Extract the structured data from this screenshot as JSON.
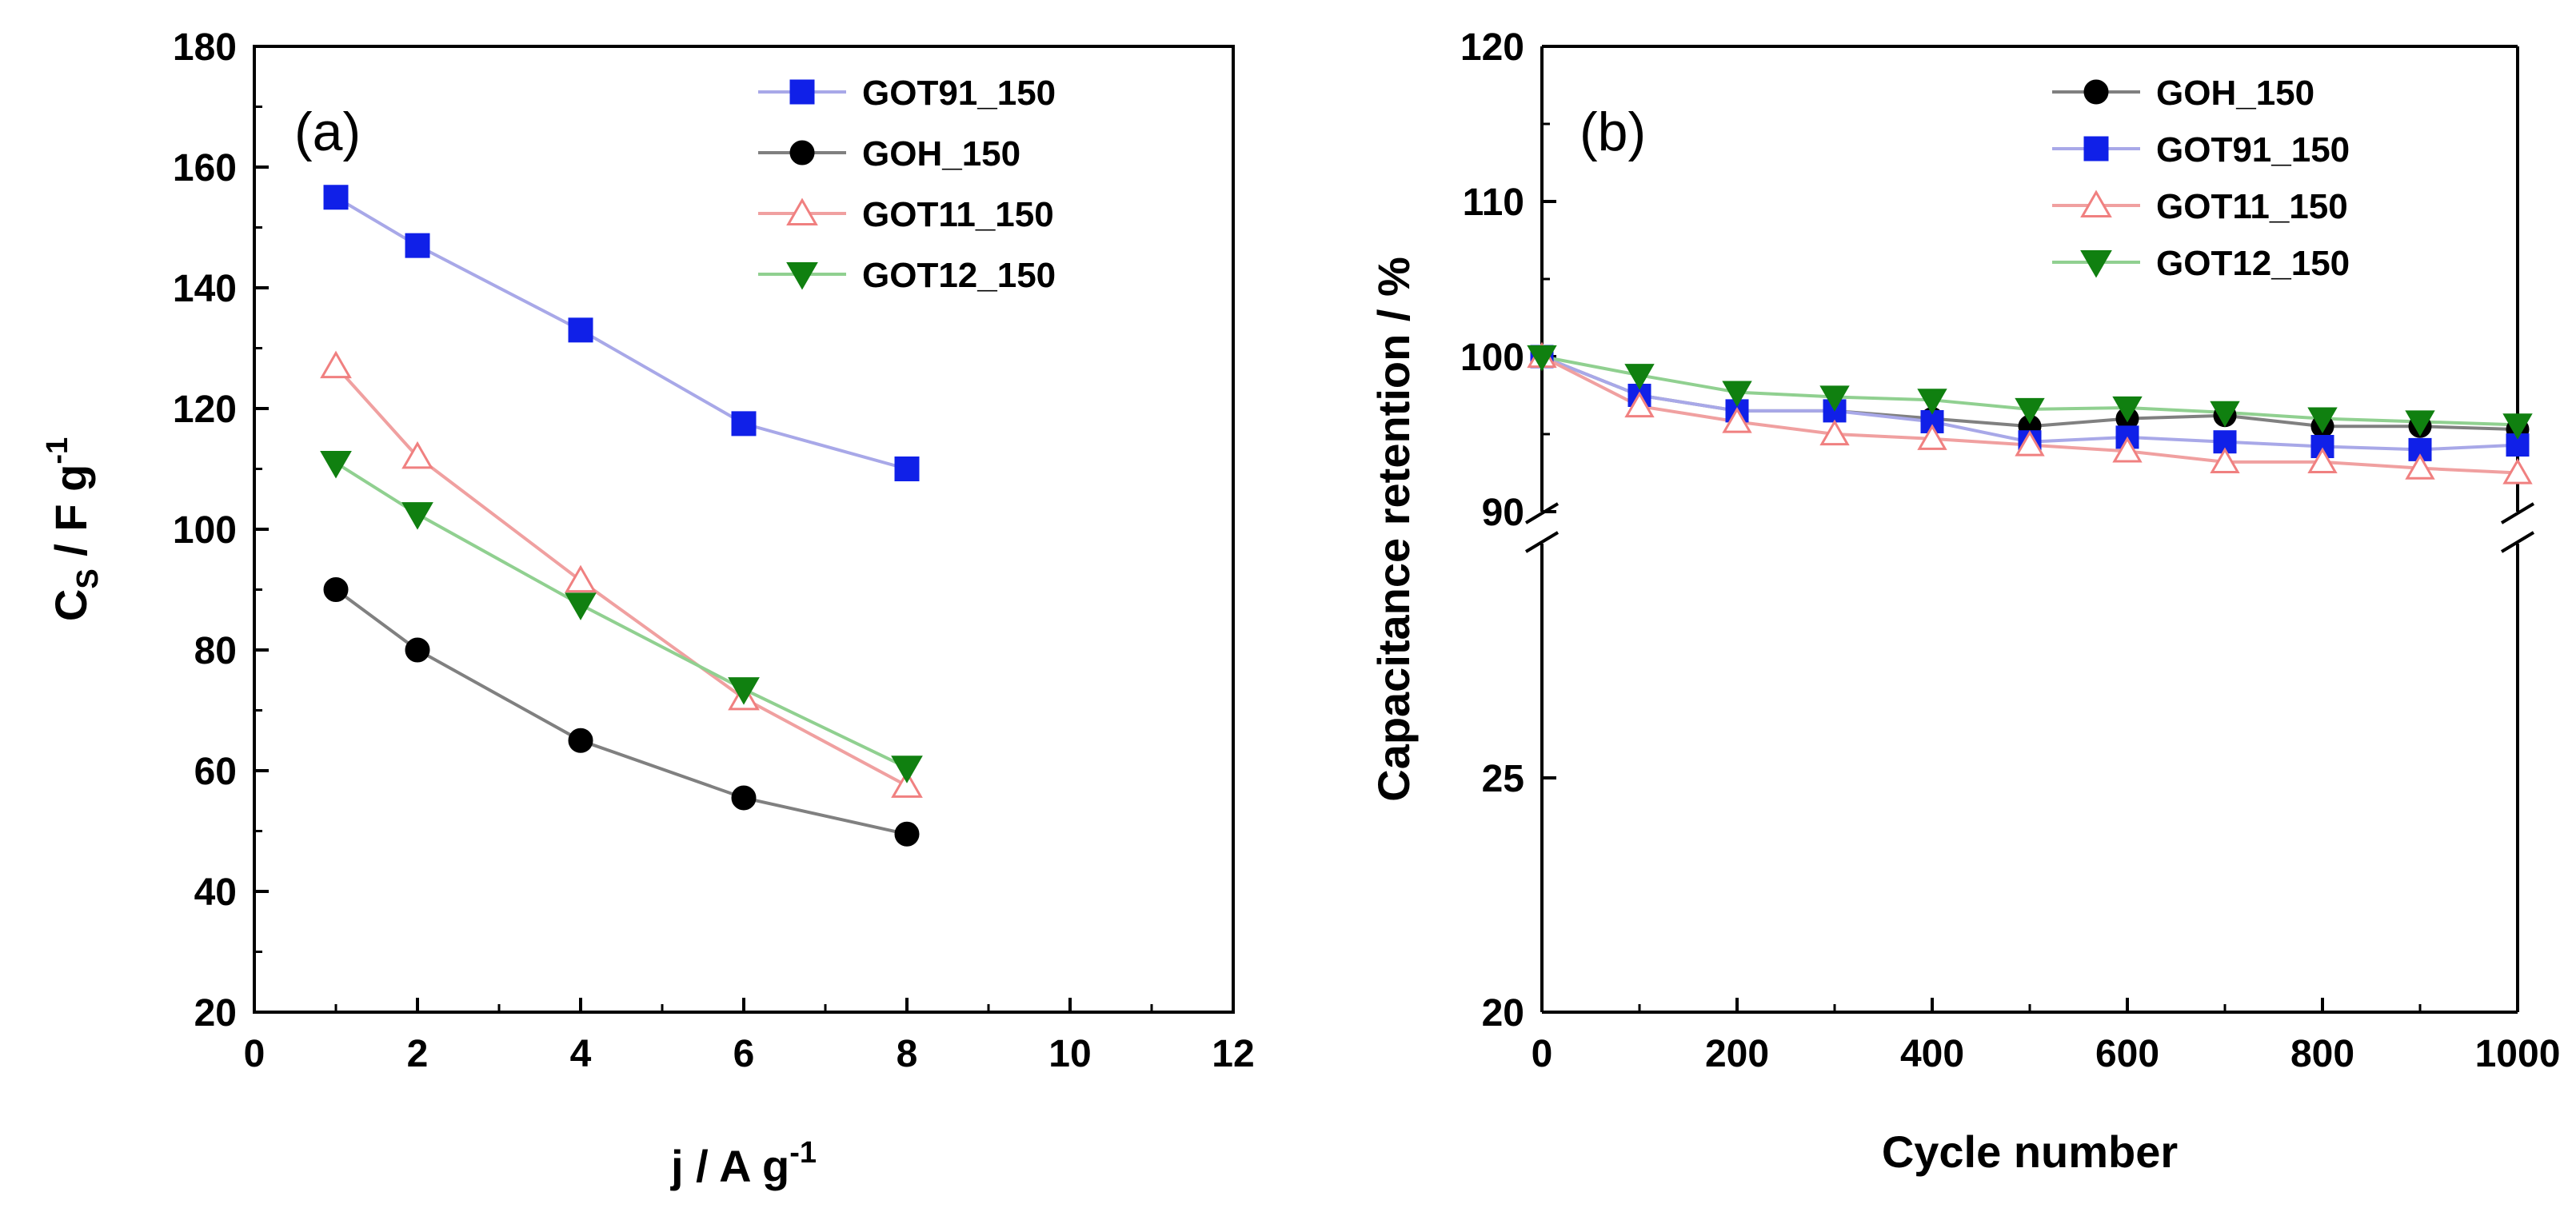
{
  "chart_data": [
    {
      "type": "line",
      "panel_label": "(a)",
      "xlabel": "j / A g",
      "xlabel_sup": "-1",
      "ylabel_main": "C",
      "ylabel_sub": "S",
      "ylabel_rest": " / F g",
      "ylabel_sup": "-1",
      "xlim": [
        0,
        12
      ],
      "ylim": [
        20,
        180
      ],
      "xticks": [
        0,
        2,
        4,
        6,
        8,
        10,
        12
      ],
      "yticks": [
        20,
        40,
        60,
        80,
        100,
        120,
        140,
        160,
        180
      ],
      "grid": false,
      "legend_position": "top-right",
      "x": [
        1,
        2,
        4,
        6,
        8
      ],
      "series": [
        {
          "name": "GOT91_150",
          "values": [
            155,
            147,
            133,
            117.5,
            110
          ],
          "marker": "square",
          "color": "#1020e8",
          "line_color": "#a8a8e8",
          "filled": true
        },
        {
          "name": "GOH_150",
          "values": [
            90,
            80,
            65,
            55.5,
            49.5
          ],
          "marker": "circle",
          "color": "#000000",
          "line_color": "#808080",
          "filled": true
        },
        {
          "name": "GOT11_150",
          "values": [
            127,
            112,
            91.5,
            72,
            57.5
          ],
          "marker": "triangle-up",
          "color": "#f08080",
          "line_color": "#f0a0a0",
          "filled": false
        },
        {
          "name": "GOT12_150",
          "values": [
            111,
            102.5,
            87.5,
            73.5,
            60.5
          ],
          "marker": "triangle-down",
          "color": "#108010",
          "line_color": "#90d090",
          "filled": true
        }
      ]
    },
    {
      "type": "line",
      "panel_label": "(b)",
      "xlabel": "Cycle number",
      "ylabel": "Capacitance retention / %",
      "xlim": [
        0,
        1000
      ],
      "xticks": [
        0,
        200,
        400,
        600,
        800,
        1000
      ],
      "y_axis_break": true,
      "ylim_upper": [
        90,
        120
      ],
      "ylim_lower": [
        20,
        30
      ],
      "yticks_upper": [
        90,
        100,
        110,
        120
      ],
      "yticks_lower": [
        20,
        25
      ],
      "grid": false,
      "legend_position": "top-right",
      "x": [
        0,
        100,
        200,
        300,
        400,
        500,
        600,
        700,
        800,
        900,
        1000
      ],
      "series": [
        {
          "name": "GOH_150",
          "values": [
            100,
            97.5,
            96.5,
            96.5,
            96,
            95.5,
            96,
            96.2,
            95.5,
            95.5,
            95.3
          ],
          "marker": "circle",
          "color": "#000000",
          "line_color": "#808080",
          "filled": true
        },
        {
          "name": "GOT91_150",
          "values": [
            100,
            97.5,
            96.5,
            96.5,
            95.8,
            94.5,
            94.8,
            94.5,
            94.2,
            94,
            94.3
          ],
          "marker": "square",
          "color": "#1020e8",
          "line_color": "#a8a8e8",
          "filled": true
        },
        {
          "name": "GOT11_150",
          "values": [
            100,
            96.8,
            95.8,
            95,
            94.7,
            94.3,
            93.9,
            93.2,
            93.2,
            92.8,
            92.5
          ],
          "marker": "triangle-up",
          "color": "#f08080",
          "line_color": "#f0a0a0",
          "filled": false
        },
        {
          "name": "GOT12_150",
          "values": [
            100,
            98.8,
            97.7,
            97.4,
            97.2,
            96.6,
            96.7,
            96.4,
            96,
            95.8,
            95.6
          ],
          "marker": "triangle-down",
          "color": "#108010",
          "line_color": "#90d090",
          "filled": true
        }
      ]
    }
  ]
}
